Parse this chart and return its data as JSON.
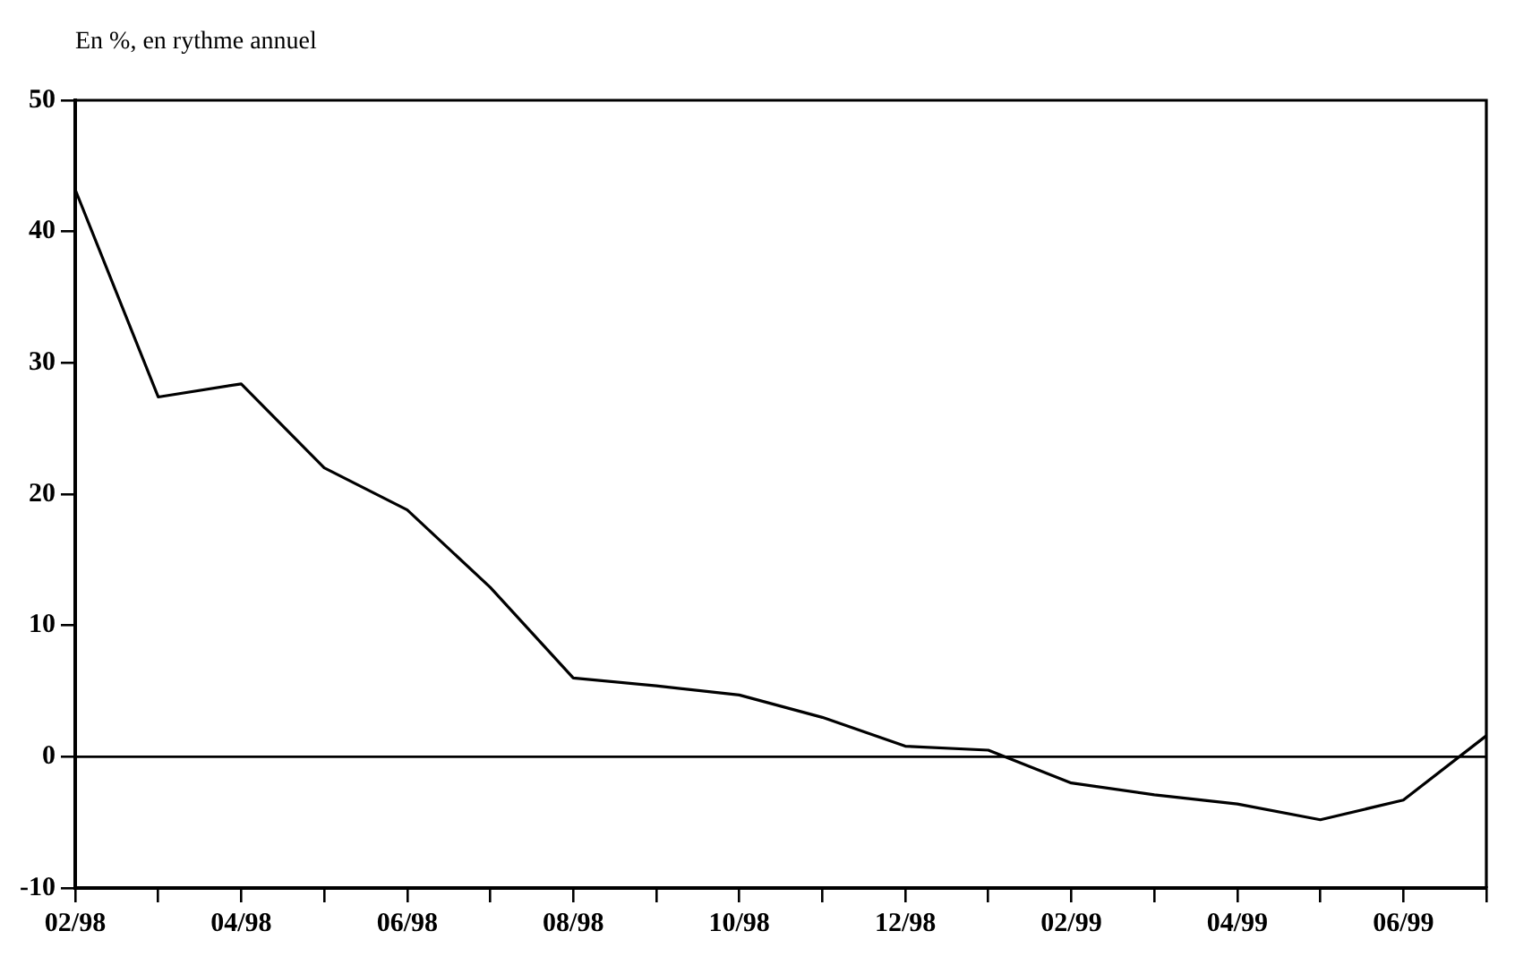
{
  "chart_data": {
    "type": "line",
    "title": "En %, en rythme annuel",
    "categories": [
      "02/98",
      null,
      "04/98",
      null,
      "06/98",
      null,
      "08/98",
      null,
      "10/98",
      null,
      "12/98",
      null,
      "02/99",
      null,
      "04/99",
      null,
      "06/99",
      null
    ],
    "series": [
      {
        "color": "#000000",
        "values": [
          43.2,
          27.4,
          28.4,
          22.0,
          18.8,
          12.9,
          6.0,
          5.4,
          4.7,
          3.0,
          0.8,
          0.5,
          -2.0,
          -2.9,
          -3.6,
          -4.8,
          -3.3,
          1.6
        ]
      }
    ],
    "ylim": [
      -10,
      50
    ],
    "yticks": [
      -10,
      0,
      10,
      20,
      30,
      40,
      50
    ],
    "ref_lines": [
      {
        "axis": "y",
        "value": 0,
        "color": "#000000"
      }
    ],
    "grid": false,
    "legend": false,
    "marker": "none",
    "line_style": "solid"
  }
}
